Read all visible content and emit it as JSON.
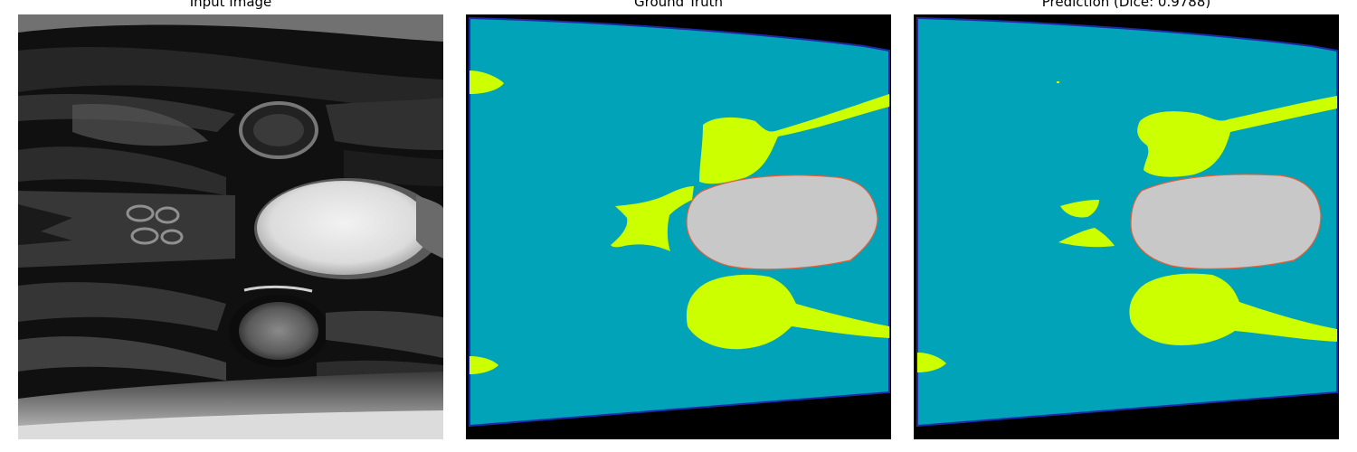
{
  "panels": [
    {
      "title": "Input Image"
    },
    {
      "title": "Ground Truth"
    },
    {
      "title": "Prediction (Dice: 0.9788)"
    }
  ],
  "colors": {
    "background": "#000000",
    "tissue": "#00a3b8",
    "boundary": "#1e2aa8",
    "structure": "#ccff00",
    "target": "#c8c8c8",
    "target_outline": "#e0603a"
  }
}
